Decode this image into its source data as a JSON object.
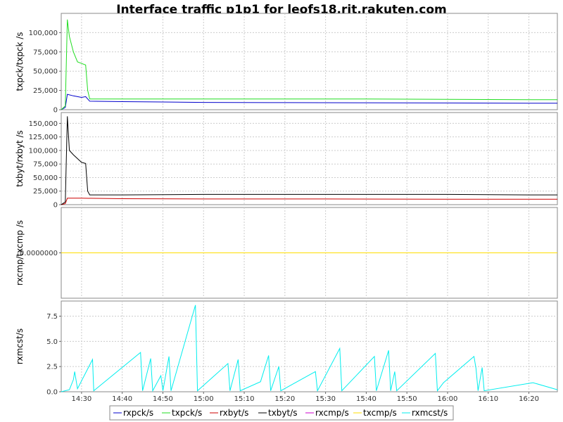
{
  "chart_data": {
    "type": "line",
    "title": "Interface traffic p1p1 for leofs18.rit.rakuten.com",
    "x_ticks": [
      "14:30",
      "14:40",
      "14:50",
      "15:00",
      "15:10",
      "15:20",
      "15:30",
      "15:40",
      "15:50",
      "16:00",
      "16:10",
      "16:20"
    ],
    "x_range": [
      "14:25",
      "16:27"
    ],
    "grid": true,
    "legend_position": "bottom",
    "legend": [
      {
        "name": "rxpck/s",
        "color": "#0000cc"
      },
      {
        "name": "txpck/s",
        "color": "#22dd22"
      },
      {
        "name": "rxbyt/s",
        "color": "#cc0000"
      },
      {
        "name": "txbyt/s",
        "color": "#000000"
      },
      {
        "name": "rxcmp/s",
        "color": "#cc00cc"
      },
      {
        "name": "txcmp/s",
        "color": "#ffdd00"
      },
      {
        "name": "rxmcst/s",
        "color": "#00eeee"
      }
    ],
    "panels": [
      {
        "ylabel": "txpck/txpck /s",
        "ylim": [
          0,
          125000
        ],
        "yticks": [
          0,
          25000,
          50000,
          75000,
          100000
        ],
        "ytick_labels": [
          "0",
          "25,000",
          "50,000",
          "75,000",
          "100,000"
        ],
        "series": [
          {
            "name": "rxpck/s",
            "color": "#0000cc",
            "points": [
              [
                "14:25",
                0
              ],
              [
                "14:26",
                3000
              ],
              [
                "14:26.5",
                20000
              ],
              [
                "14:28",
                18000
              ],
              [
                "14:30",
                16000
              ],
              [
                "14:31",
                17000
              ],
              [
                "14:32",
                11000
              ],
              [
                "14:40",
                10500
              ],
              [
                "14:50",
                10000
              ],
              [
                "15:00",
                9500
              ],
              [
                "15:20",
                9200
              ],
              [
                "15:40",
                9000
              ],
              [
                "16:00",
                8800
              ],
              [
                "16:20",
                8500
              ],
              [
                "16:27",
                8500
              ]
            ]
          },
          {
            "name": "txpck/s",
            "color": "#22dd22",
            "points": [
              [
                "14:25",
                0
              ],
              [
                "14:26",
                5000
              ],
              [
                "14:26.5",
                117000
              ],
              [
                "14:27",
                95000
              ],
              [
                "14:28",
                75000
              ],
              [
                "14:29",
                62000
              ],
              [
                "14:30",
                60000
              ],
              [
                "14:31",
                58000
              ],
              [
                "14:31.5",
                25000
              ],
              [
                "14:32",
                14000
              ],
              [
                "14:40",
                14000
              ],
              [
                "15:00",
                14000
              ],
              [
                "15:20",
                14000
              ],
              [
                "15:40",
                14000
              ],
              [
                "16:00",
                13500
              ],
              [
                "16:20",
                13000
              ],
              [
                "16:27",
                13000
              ]
            ]
          }
        ]
      },
      {
        "ylabel": "txbyt/rxbyt /s",
        "ylim": [
          0,
          170000
        ],
        "yticks": [
          0,
          25000,
          50000,
          75000,
          100000,
          125000,
          150000
        ],
        "ytick_labels": [
          "0",
          "25,000",
          "50,000",
          "75,000",
          "100,000",
          "125,000",
          "150,000"
        ],
        "series": [
          {
            "name": "rxbyt/s",
            "color": "#cc0000",
            "points": [
              [
                "14:25",
                0
              ],
              [
                "14:26",
                2000
              ],
              [
                "14:26.5",
                12000
              ],
              [
                "14:30",
                12000
              ],
              [
                "14:40",
                11000
              ],
              [
                "15:00",
                10500
              ],
              [
                "15:30",
                10500
              ],
              [
                "16:00",
                10000
              ],
              [
                "16:27",
                10000
              ]
            ]
          },
          {
            "name": "txbyt/s",
            "color": "#000000",
            "points": [
              [
                "14:25",
                0
              ],
              [
                "14:26",
                5000
              ],
              [
                "14:26.5",
                163000
              ],
              [
                "14:27",
                100000
              ],
              [
                "14:28",
                92000
              ],
              [
                "14:29",
                85000
              ],
              [
                "14:30",
                78000
              ],
              [
                "14:31",
                76000
              ],
              [
                "14:31.5",
                25000
              ],
              [
                "14:32",
                18000
              ],
              [
                "14:40",
                18000
              ],
              [
                "15:00",
                19000
              ],
              [
                "15:20",
                19000
              ],
              [
                "15:40",
                19000
              ],
              [
                "16:00",
                19000
              ],
              [
                "16:20",
                18000
              ],
              [
                "16:27",
                18000
              ]
            ]
          }
        ]
      },
      {
        "ylabel": "rxcmp/txcmp /s",
        "ylim": [
          -1,
          1
        ],
        "yticks": [
          0
        ],
        "ytick_labels": [
          "0.0000000"
        ],
        "series": [
          {
            "name": "rxcmp/s",
            "color": "#cc00cc",
            "points": [
              [
                "14:25",
                0
              ],
              [
                "16:27",
                0
              ]
            ]
          },
          {
            "name": "txcmp/s",
            "color": "#ffdd00",
            "points": [
              [
                "14:25",
                0
              ],
              [
                "16:27",
                0
              ]
            ]
          }
        ]
      },
      {
        "ylabel": "rxmcst/s",
        "ylim": [
          0,
          9
        ],
        "yticks": [
          0,
          2.5,
          5,
          7.5
        ],
        "ytick_labels": [
          "0.0",
          "2.5",
          "5.0",
          "7.5"
        ],
        "series": [
          {
            "name": "rxmcst/s",
            "color": "#00eeee",
            "points": [
              [
                "14:25",
                0
              ],
              [
                "14:27",
                0.2
              ],
              [
                "14:28",
                1.2
              ],
              [
                "14:28.3",
                2.0
              ],
              [
                "14:29",
                0.3
              ],
              [
                "14:32.7",
                3.2
              ],
              [
                "14:33",
                0.1
              ],
              [
                "14:44.5",
                3.9
              ],
              [
                "14:45",
                0.1
              ],
              [
                "14:47",
                3.3
              ],
              [
                "14:47.5",
                0.1
              ],
              [
                "14:49.5",
                1.6
              ],
              [
                "14:50",
                0.1
              ],
              [
                "14:51.5",
                3.5
              ],
              [
                "14:52",
                0.1
              ],
              [
                "14:58",
                8.6
              ],
              [
                "14:58.5",
                0.1
              ],
              [
                "15:06",
                2.8
              ],
              [
                "15:06.5",
                0.1
              ],
              [
                "15:08.5",
                3.2
              ],
              [
                "15:09",
                0.1
              ],
              [
                "15:14",
                1.0
              ],
              [
                "15:16",
                3.6
              ],
              [
                "15:16.5",
                0.1
              ],
              [
                "15:18.5",
                2.5
              ],
              [
                "15:19",
                0.1
              ],
              [
                "15:27.5",
                2.0
              ],
              [
                "15:28",
                0.1
              ],
              [
                "15:33.5",
                4.3
              ],
              [
                "15:34",
                0.1
              ],
              [
                "15:42",
                3.5
              ],
              [
                "15:42.5",
                0.1
              ],
              [
                "15:45.5",
                4.1
              ],
              [
                "15:46",
                0.1
              ],
              [
                "15:47",
                2.0
              ],
              [
                "15:47.5",
                0.1
              ],
              [
                "15:57",
                3.8
              ],
              [
                "15:57.5",
                0.1
              ],
              [
                "15:59",
                0.9
              ],
              [
                "16:06.5",
                3.5
              ],
              [
                "16:07",
                2.3
              ],
              [
                "16:07.5",
                0.1
              ],
              [
                "16:08.5",
                2.4
              ],
              [
                "16:09",
                0.1
              ],
              [
                "16:21",
                0.9
              ],
              [
                "16:27",
                0.2
              ]
            ]
          }
        ]
      }
    ]
  }
}
